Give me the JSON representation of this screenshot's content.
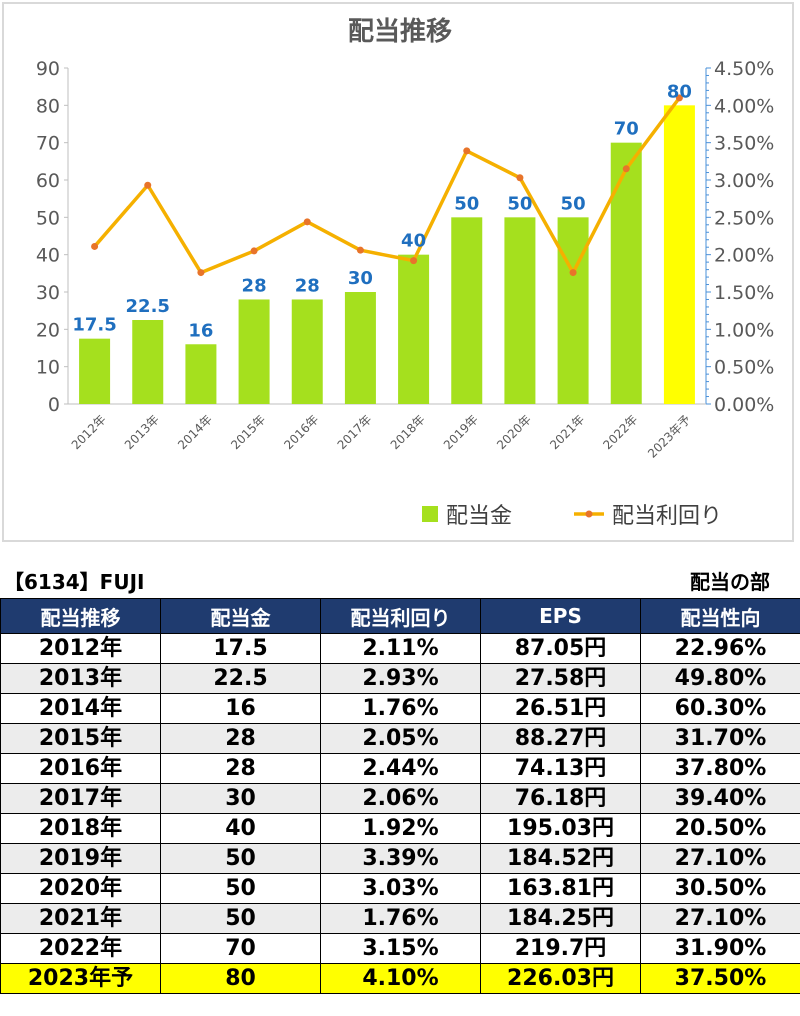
{
  "chart_data": {
    "type": "bar",
    "title": "配当推移",
    "categories": [
      "2012年",
      "2013年",
      "2014年",
      "2015年",
      "2016年",
      "2017年",
      "2018年",
      "2019年",
      "2020年",
      "2021年",
      "2022年",
      "2023年予"
    ],
    "series": [
      {
        "name": "配当金",
        "type": "bar",
        "axis": "left",
        "values": [
          17.5,
          22.5,
          16,
          28,
          28,
          30,
          40,
          50,
          50,
          50,
          70,
          80
        ],
        "labels": [
          "17.5",
          "22.5",
          "16",
          "28",
          "28",
          "30",
          "40",
          "50",
          "50",
          "50",
          "70",
          "80"
        ],
        "color": "#a5e01e",
        "highlight_last_color": "#ffff00"
      },
      {
        "name": "配当利回り",
        "type": "line",
        "axis": "right",
        "values": [
          2.11,
          2.93,
          1.76,
          2.05,
          2.44,
          2.06,
          1.92,
          3.39,
          3.03,
          1.76,
          3.15,
          4.1
        ],
        "color": "#f5b000",
        "marker_color": "#e8742a"
      }
    ],
    "ylim": [
      0,
      90
    ],
    "yticks": [
      "0",
      "10",
      "20",
      "30",
      "40",
      "50",
      "60",
      "70",
      "80",
      "90"
    ],
    "y2lim": [
      0,
      4.5
    ],
    "y2ticks": [
      "0.00%",
      "0.50%",
      "1.00%",
      "1.50%",
      "2.00%",
      "2.50%",
      "3.00%",
      "3.50%",
      "4.00%",
      "4.50%"
    ],
    "legend_position": "bottom-right",
    "label_color": "#1f6fbf"
  },
  "header": {
    "ticker": "【6134】FUJI",
    "section": "配当の部"
  },
  "table": {
    "columns": [
      "配当推移",
      "配当金",
      "配当利回り",
      "EPS",
      "配当性向"
    ],
    "rows": [
      [
        "2012年",
        "17.5",
        "2.11%",
        "87.05円",
        "22.96%"
      ],
      [
        "2013年",
        "22.5",
        "2.93%",
        "27.58円",
        "49.80%"
      ],
      [
        "2014年",
        "16",
        "1.76%",
        "26.51円",
        "60.30%"
      ],
      [
        "2015年",
        "28",
        "2.05%",
        "88.27円",
        "31.70%"
      ],
      [
        "2016年",
        "28",
        "2.44%",
        "74.13円",
        "37.80%"
      ],
      [
        "2017年",
        "30",
        "2.06%",
        "76.18円",
        "39.40%"
      ],
      [
        "2018年",
        "40",
        "1.92%",
        "195.03円",
        "20.50%"
      ],
      [
        "2019年",
        "50",
        "3.39%",
        "184.52円",
        "27.10%"
      ],
      [
        "2020年",
        "50",
        "3.03%",
        "163.81円",
        "30.50%"
      ],
      [
        "2021年",
        "50",
        "1.76%",
        "184.25円",
        "27.10%"
      ],
      [
        "2022年",
        "70",
        "3.15%",
        "219.7円",
        "31.90%"
      ],
      [
        "2023年予",
        "80",
        "4.10%",
        "226.03円",
        "37.50%"
      ]
    ]
  }
}
